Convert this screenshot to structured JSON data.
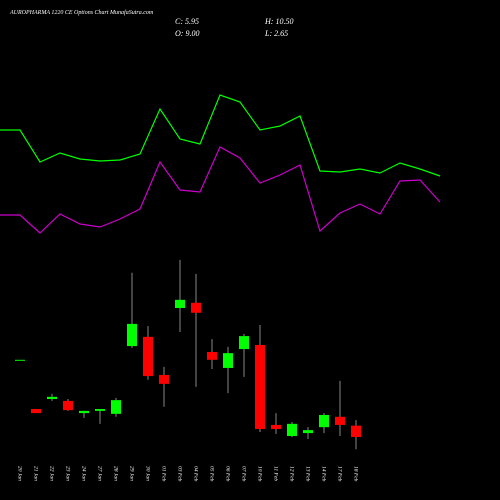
{
  "chart_data": {
    "type": "candlestick",
    "title": "AUROPHARMA 1220 CE Options Chart MunafaSutra.com",
    "info": {
      "close": "C: 5.95",
      "high": "H: 10.50",
      "open": "O: 9.00",
      "low": "L: 2.65"
    },
    "categories": [
      "20 Jan",
      "21 Jan",
      "22 Jan",
      "23 Jan",
      "24 Jan",
      "27 Jan",
      "28 Jan",
      "29 Jan",
      "30 Jan",
      "01 Feb",
      "03 Feb",
      "04 Feb",
      "05 Feb",
      "06 Feb",
      "07 Feb",
      "10 Feb",
      "11 Feb",
      "12 Feb",
      "13 Feb",
      "14 Feb",
      "17 Feb",
      "18 Feb"
    ],
    "open": [
      26.8,
      13.5,
      16.2,
      15.7,
      12.4,
      13.0,
      12.2,
      30.5,
      33.0,
      22.7,
      40.8,
      42.2,
      28.9,
      24.6,
      29.7,
      30.8,
      9.2,
      6.2,
      7.0,
      8.6,
      11.4,
      9.0
    ],
    "high": [
      26.8,
      13.5,
      17.6,
      16.2,
      13.0,
      13.5,
      16.5,
      50.3,
      35.9,
      24.9,
      53.8,
      50.0,
      32.4,
      30.3,
      33.8,
      36.2,
      12.4,
      10.0,
      8.6,
      12.4,
      21.1,
      10.5
    ],
    "low": [
      26.8,
      12.4,
      15.7,
      13.0,
      11.1,
      9.5,
      11.4,
      30.0,
      21.4,
      14.1,
      34.3,
      19.5,
      24.3,
      17.8,
      22.2,
      7.3,
      6.8,
      5.9,
      5.4,
      7.0,
      6.2,
      2.65
    ],
    "close": [
      26.8,
      12.4,
      16.8,
      13.2,
      13.0,
      13.5,
      15.9,
      36.5,
      22.4,
      20.3,
      43.0,
      39.5,
      26.8,
      28.6,
      33.2,
      8.1,
      8.1,
      9.5,
      7.8,
      11.9,
      9.2,
      5.95
    ],
    "up_color": "#00ff00",
    "down_color": "#ff0000",
    "ylim": [
      0,
      124
    ],
    "y2lim": [
      0,
      100
    ],
    "series": [
      {
        "color": "#00ff00",
        "axis": "y2",
        "values": [
          60,
          44,
          48.5,
          45.5,
          44.5,
          45,
          48,
          70.5,
          55.5,
          53,
          77.5,
          74,
          60,
          62,
          67,
          39.5,
          39,
          40.5,
          38.5,
          43.5,
          40.5,
          37
        ]
      },
      {
        "color": "#cc00cc",
        "axis": "y2",
        "values": [
          17.5,
          8.5,
          18,
          13,
          11.5,
          15.5,
          20.5,
          44,
          30,
          29,
          51.5,
          46,
          33.5,
          37.5,
          42.5,
          9.5,
          18.5,
          23,
          18,
          34.5,
          35,
          24
        ]
      }
    ]
  }
}
